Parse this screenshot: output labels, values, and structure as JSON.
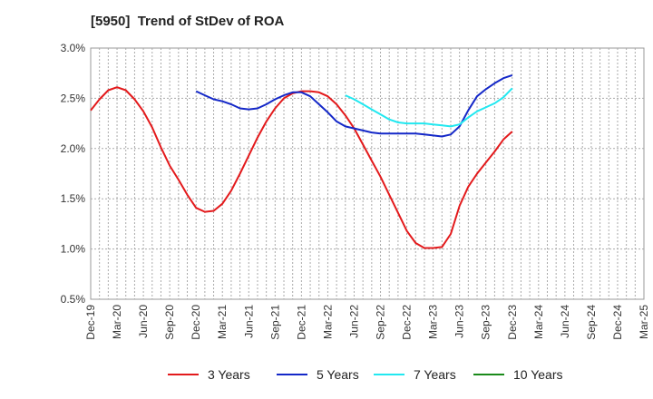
{
  "chart_data": {
    "type": "line",
    "title": "[5950]  Trend of StDev of ROA",
    "x_labels": [
      "Dec-19",
      "Mar-20",
      "Jun-20",
      "Sep-20",
      "Dec-20",
      "Mar-21",
      "Jun-21",
      "Sep-21",
      "Dec-21",
      "Mar-22",
      "Jun-22",
      "Sep-22",
      "Dec-22",
      "Mar-23",
      "Jun-23",
      "Sep-23",
      "Dec-23",
      "Mar-24",
      "Jun-24",
      "Sep-24",
      "Dec-24",
      "Mar-25"
    ],
    "y_ticks": [
      "0.5%",
      "1.0%",
      "1.5%",
      "2.0%",
      "2.5%",
      "3.0%"
    ],
    "ylim": [
      0.5,
      3.0
    ],
    "y_unit": "%",
    "grid": true,
    "legend_position": "bottom",
    "series": [
      {
        "name": "3 Years",
        "color": "#e31a1c",
        "points": [
          [
            0,
            2.38
          ],
          [
            1,
            2.49
          ],
          [
            2,
            2.58
          ],
          [
            3,
            2.61
          ],
          [
            4,
            2.58
          ],
          [
            5,
            2.49
          ],
          [
            6,
            2.37
          ],
          [
            7,
            2.21
          ],
          [
            8,
            2.01
          ],
          [
            9,
            1.83
          ],
          [
            10,
            1.69
          ],
          [
            11,
            1.54
          ],
          [
            12,
            1.41
          ],
          [
            13,
            1.37
          ],
          [
            14,
            1.38
          ],
          [
            15,
            1.45
          ],
          [
            16,
            1.58
          ],
          [
            17,
            1.75
          ],
          [
            18,
            1.93
          ],
          [
            19,
            2.11
          ],
          [
            20,
            2.27
          ],
          [
            21,
            2.4
          ],
          [
            22,
            2.5
          ],
          [
            23,
            2.55
          ],
          [
            24,
            2.57
          ],
          [
            25,
            2.57
          ],
          [
            26,
            2.56
          ],
          [
            27,
            2.52
          ],
          [
            28,
            2.44
          ],
          [
            29,
            2.33
          ],
          [
            30,
            2.2
          ],
          [
            31,
            2.04
          ],
          [
            32,
            1.88
          ],
          [
            33,
            1.72
          ],
          [
            34,
            1.54
          ],
          [
            35,
            1.36
          ],
          [
            36,
            1.18
          ],
          [
            37,
            1.06
          ],
          [
            38,
            1.01
          ],
          [
            39,
            1.01
          ],
          [
            40,
            1.02
          ],
          [
            41,
            1.15
          ],
          [
            42,
            1.43
          ],
          [
            43,
            1.62
          ],
          [
            44,
            1.75
          ],
          [
            45,
            1.86
          ],
          [
            46,
            1.97
          ],
          [
            47,
            2.09
          ],
          [
            48,
            2.17
          ]
        ]
      },
      {
        "name": "5 Years",
        "color": "#1428c8",
        "points": [
          [
            12,
            2.57
          ],
          [
            13,
            2.53
          ],
          [
            14,
            2.49
          ],
          [
            15,
            2.47
          ],
          [
            16,
            2.44
          ],
          [
            17,
            2.4
          ],
          [
            18,
            2.39
          ],
          [
            19,
            2.4
          ],
          [
            20,
            2.44
          ],
          [
            21,
            2.49
          ],
          [
            22,
            2.53
          ],
          [
            23,
            2.56
          ],
          [
            24,
            2.56
          ],
          [
            25,
            2.52
          ],
          [
            26,
            2.44
          ],
          [
            27,
            2.36
          ],
          [
            28,
            2.27
          ],
          [
            29,
            2.22
          ],
          [
            30,
            2.2
          ],
          [
            31,
            2.18
          ],
          [
            32,
            2.16
          ],
          [
            33,
            2.15
          ],
          [
            34,
            2.15
          ],
          [
            35,
            2.15
          ],
          [
            36,
            2.15
          ],
          [
            37,
            2.15
          ],
          [
            38,
            2.14
          ],
          [
            39,
            2.13
          ],
          [
            40,
            2.12
          ],
          [
            41,
            2.14
          ],
          [
            42,
            2.22
          ],
          [
            43,
            2.38
          ],
          [
            44,
            2.52
          ],
          [
            45,
            2.59
          ],
          [
            46,
            2.65
          ],
          [
            47,
            2.7
          ],
          [
            48,
            2.73
          ]
        ]
      },
      {
        "name": "7 Years",
        "color": "#22e8f0",
        "points": [
          [
            29,
            2.53
          ],
          [
            30,
            2.49
          ],
          [
            31,
            2.44
          ],
          [
            32,
            2.39
          ],
          [
            33,
            2.34
          ],
          [
            34,
            2.29
          ],
          [
            35,
            2.26
          ],
          [
            36,
            2.25
          ],
          [
            37,
            2.25
          ],
          [
            38,
            2.25
          ],
          [
            39,
            2.24
          ],
          [
            40,
            2.23
          ],
          [
            41,
            2.22
          ],
          [
            42,
            2.24
          ],
          [
            43,
            2.31
          ],
          [
            44,
            2.37
          ],
          [
            45,
            2.41
          ],
          [
            46,
            2.45
          ],
          [
            47,
            2.51
          ],
          [
            48,
            2.6
          ]
        ]
      },
      {
        "name": "10 Years",
        "color": "#1a8a1a",
        "points": []
      }
    ]
  }
}
